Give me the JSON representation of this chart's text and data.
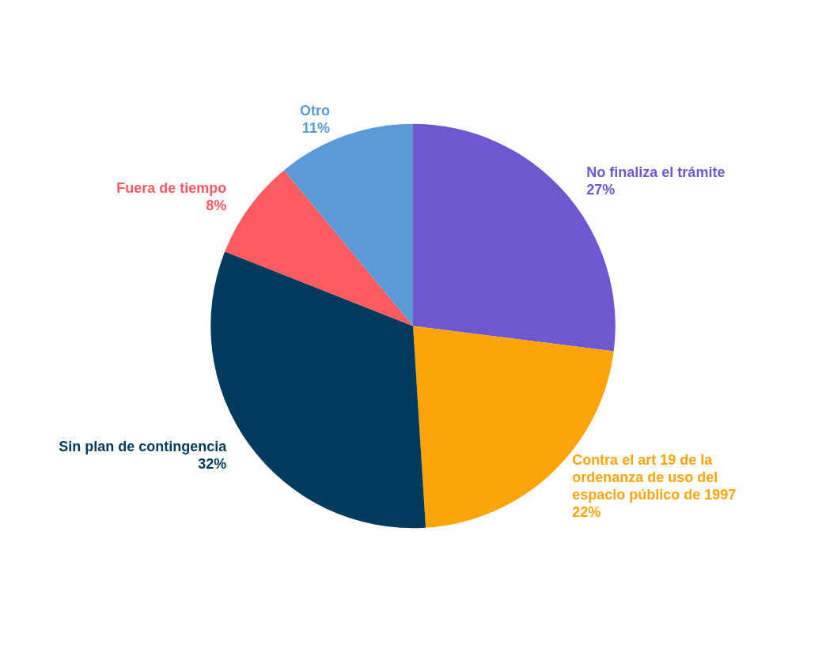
{
  "chart_data": {
    "type": "pie",
    "categories": [
      "No finaliza el trámite",
      "Contra el art 19 de la ordenanza de uso del espacio público de 1997",
      "Sin plan de contingencia",
      "Fuera de tiempo",
      "Otro"
    ],
    "values": [
      27,
      22,
      32,
      8,
      11
    ],
    "colors": [
      "#6f57d0",
      "#fca50a",
      "#003a5c",
      "#fd5b5f",
      "#5b9ad6"
    ],
    "value_labels": [
      "27%",
      "22%",
      "32%",
      "8%",
      "11%"
    ],
    "legend": false
  }
}
